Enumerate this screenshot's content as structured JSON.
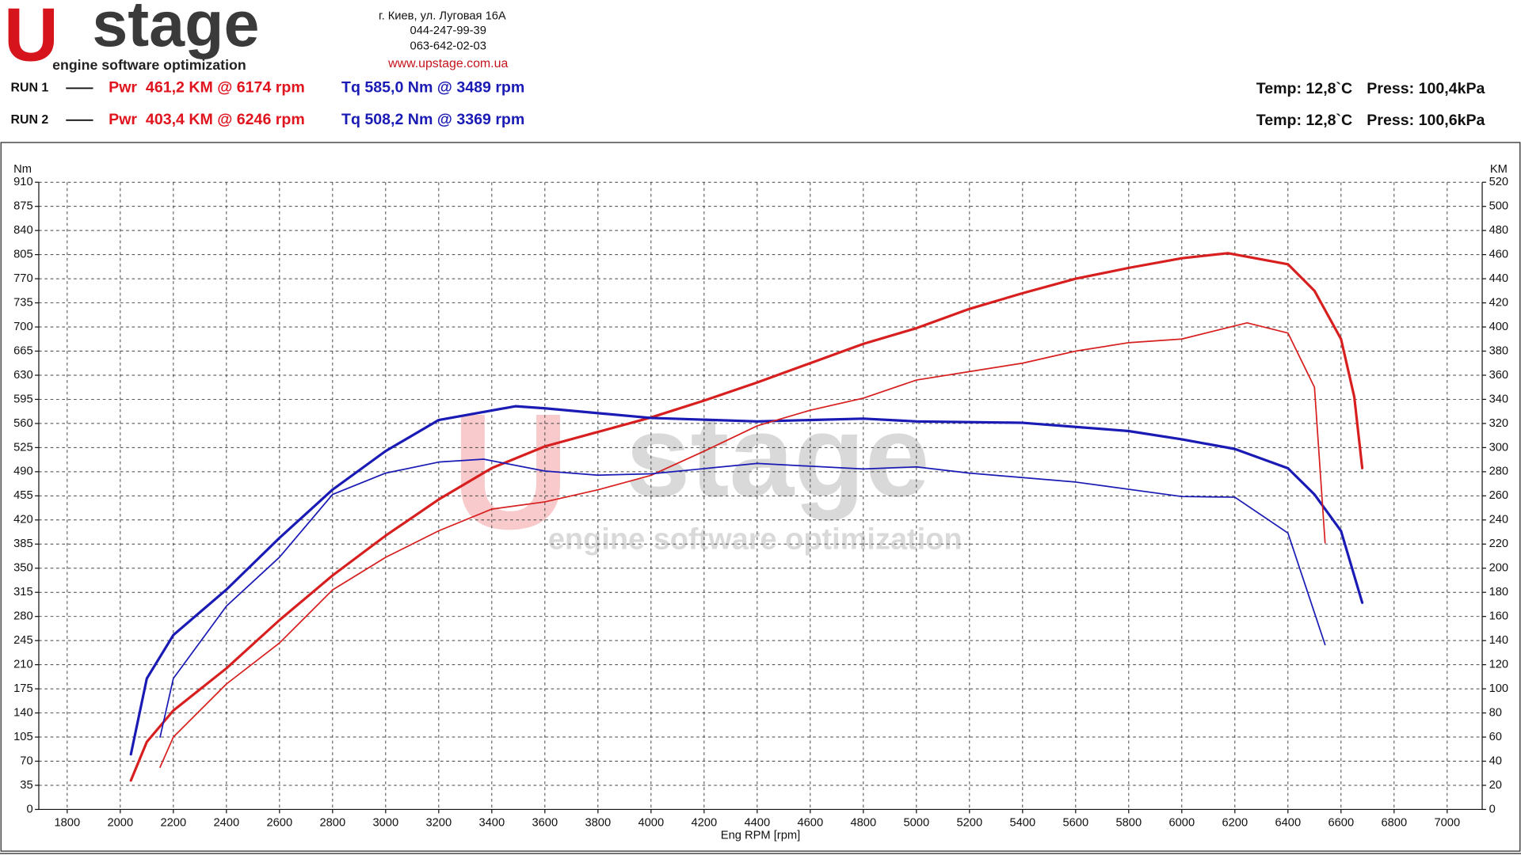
{
  "header": {
    "logo_letter": "U",
    "logo_word": "stage",
    "logo_tagline": "engine software optimization",
    "address": "г. Киев, ул. Луговая 16А",
    "phone1": "044-247-99-39",
    "phone2": "063-642-02-03",
    "website": "www.upstage.com.ua"
  },
  "runs": [
    {
      "label": "RUN 1",
      "power": "Pwr  461,2 KM @ 6174 rpm",
      "torque": "Tq 585,0 Nm @ 3489 rpm",
      "temp": "Temp: 12,8`C",
      "press": "Press: 100,4kPa"
    },
    {
      "label": "RUN 2",
      "power": "Pwr  403,4 KM @ 6246 rpm",
      "torque": "Tq 508,2 Nm @ 3369 rpm",
      "temp": "Temp: 12,8`C",
      "press": "Press: 100,6kPa"
    }
  ],
  "chart_data": {
    "type": "line",
    "xlabel": "Eng RPM [rpm]",
    "ylabel": "Nm",
    "y2label": "KM",
    "xlim": [
      1693,
      7132
    ],
    "ylim": [
      0,
      910
    ],
    "y2lim": [
      0,
      520
    ],
    "xticks": [
      1800,
      2000,
      2200,
      2400,
      2600,
      2800,
      3000,
      3200,
      3400,
      3600,
      3800,
      4000,
      4200,
      4400,
      4600,
      4800,
      5000,
      5200,
      5400,
      5600,
      5800,
      6000,
      6200,
      6400,
      6600,
      6800,
      7000
    ],
    "yticks": [
      0,
      35,
      70,
      105,
      140,
      175,
      210,
      245,
      280,
      315,
      350,
      385,
      420,
      455,
      490,
      525,
      560,
      595,
      630,
      665,
      700,
      735,
      770,
      805,
      840,
      875,
      910
    ],
    "y2ticks": [
      0,
      20,
      40,
      60,
      80,
      100,
      120,
      140,
      160,
      180,
      200,
      220,
      240,
      260,
      280,
      300,
      320,
      340,
      360,
      380,
      400,
      420,
      440,
      460,
      480,
      500,
      520
    ],
    "grid": true,
    "series": [
      {
        "color": "#d71f1f",
        "axis": "y2",
        "line_width": 2.6,
        "x": [
          2040,
          2100,
          2200,
          2400,
          2600,
          2800,
          3000,
          3200,
          3400,
          3600,
          3800,
          4000,
          4200,
          4400,
          4600,
          4800,
          5000,
          5200,
          5400,
          5600,
          5800,
          6000,
          6174,
          6400,
          6500,
          6600,
          6650,
          6680
        ],
        "values": [
          24,
          56,
          82,
          117,
          157,
          194,
          227,
          257,
          283,
          301,
          313,
          325,
          339,
          354,
          370,
          386,
          399,
          415,
          428,
          440,
          449,
          457,
          461.2,
          452,
          430,
          390,
          342,
          283
        ]
      },
      {
        "color": "#1a1ab4",
        "axis": "y",
        "line_width": 2.6,
        "x": [
          2040,
          2100,
          2200,
          2400,
          2600,
          2800,
          3000,
          3200,
          3489,
          3600,
          3800,
          4000,
          4400,
          4800,
          5000,
          5400,
          5800,
          6000,
          6200,
          6400,
          6500,
          6600,
          6680
        ],
        "values": [
          80,
          190,
          253,
          319,
          394,
          464,
          520,
          565,
          585,
          582,
          575,
          568,
          563,
          567,
          563,
          561,
          549,
          537,
          523,
          495,
          457,
          404,
          300
        ]
      },
      {
        "color": "#d71f1f",
        "axis": "y2",
        "line_width": 1.4,
        "x": [
          2150,
          2200,
          2400,
          2600,
          2800,
          3000,
          3200,
          3400,
          3600,
          3800,
          4000,
          4200,
          4400,
          4600,
          4800,
          5000,
          5200,
          5400,
          5600,
          5800,
          6000,
          6246,
          6400,
          6500,
          6540
        ],
        "values": [
          35,
          60,
          104,
          138,
          182,
          209,
          231,
          249,
          255,
          265,
          277,
          297,
          318,
          331,
          341,
          356,
          363,
          370,
          380,
          387,
          390,
          403.4,
          395,
          350,
          221
        ]
      },
      {
        "color": "#1a1ab4",
        "axis": "y",
        "line_width": 1.4,
        "x": [
          2150,
          2200,
          2400,
          2600,
          2800,
          3000,
          3200,
          3369,
          3600,
          3800,
          4000,
          4400,
          4800,
          5000,
          5200,
          5600,
          6000,
          6200,
          6400,
          6540
        ],
        "values": [
          105,
          190,
          295,
          366,
          457,
          488,
          504,
          508.2,
          491,
          485,
          487,
          502,
          494,
          497,
          488,
          475,
          454,
          453,
          401,
          239
        ]
      }
    ]
  }
}
